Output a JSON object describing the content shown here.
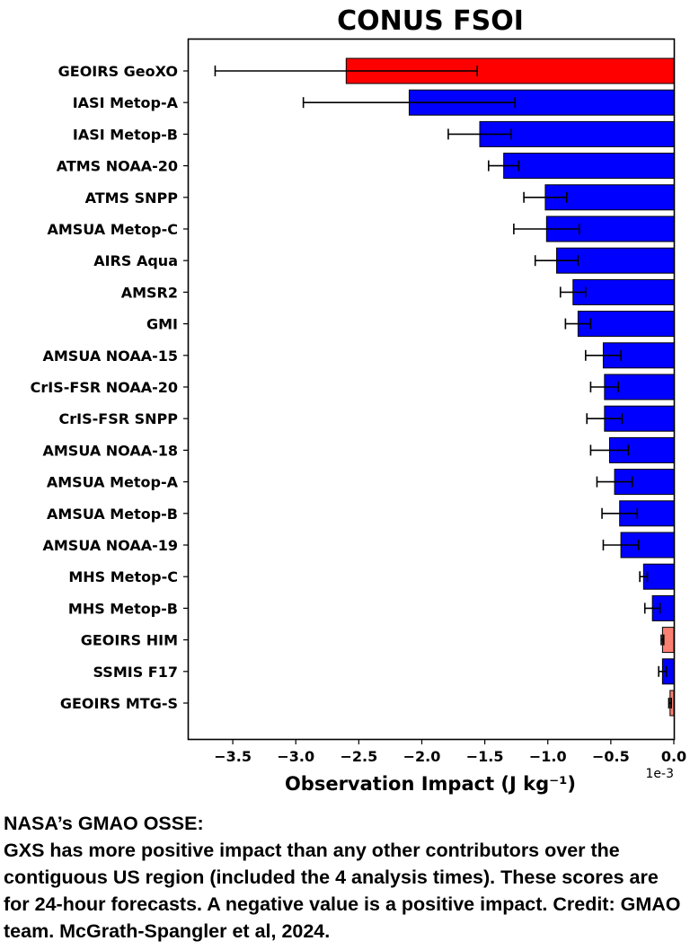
{
  "chart_data": {
    "type": "bar",
    "orientation": "horizontal",
    "title": "CONUS FSOI",
    "xlabel": "Observation Impact (J kg⁻¹)",
    "ylabel": "",
    "x_scale_label": "1e-3",
    "xlim": [
      -3.85,
      0.0
    ],
    "xticks": [
      -3.5,
      -3.0,
      -2.5,
      -2.0,
      -1.5,
      -1.0,
      -0.5,
      0.0
    ],
    "xtick_labels": [
      "−3.5",
      "−3.0",
      "−2.5",
      "−2.0",
      "−1.5",
      "−1.0",
      "−0.5",
      "0.0"
    ],
    "grid": false,
    "categories": [
      "GEOIRS GeoXO",
      "IASI Metop-A",
      "IASI Metop-B",
      "ATMS NOAA-20",
      "ATMS SNPP",
      "AMSUA Metop-C",
      "AIRS Aqua",
      "AMSR2",
      "GMI",
      "AMSUA NOAA-15",
      "CrIS-FSR NOAA-20",
      "CrIS-FSR SNPP",
      "AMSUA NOAA-18",
      "AMSUA Metop-A",
      "AMSUA Metop-B",
      "AMSUA NOAA-19",
      "MHS Metop-C",
      "MHS Metop-B",
      "GEOIRS HIM",
      "SSMIS F17",
      "GEOIRS MTG-S"
    ],
    "values": [
      -2.6,
      -2.1,
      -1.54,
      -1.35,
      -1.02,
      -1.01,
      -0.93,
      -0.8,
      -0.76,
      -0.56,
      -0.55,
      -0.55,
      -0.51,
      -0.47,
      -0.43,
      -0.42,
      -0.24,
      -0.17,
      -0.09,
      -0.09,
      -0.03
    ],
    "errors": [
      1.04,
      0.84,
      0.25,
      0.12,
      0.17,
      0.26,
      0.17,
      0.1,
      0.1,
      0.14,
      0.11,
      0.14,
      0.15,
      0.14,
      0.14,
      0.14,
      0.03,
      0.06,
      0.01,
      0.03,
      0.01
    ],
    "bar_colors": [
      "#ff0000",
      "#0000ff",
      "#0000ff",
      "#0000ff",
      "#0000ff",
      "#0000ff",
      "#0000ff",
      "#0000ff",
      "#0000ff",
      "#0000ff",
      "#0000ff",
      "#0000ff",
      "#0000ff",
      "#0000ff",
      "#0000ff",
      "#0000ff",
      "#0000ff",
      "#0000ff",
      "#fa8072",
      "#0000ff",
      "#fa8072"
    ]
  },
  "caption": {
    "heading": "NASA’s GMAO OSSE:",
    "body": "GXS has more positive impact than any other contributors over the contiguous US region (included the 4 analysis times). These scores are for 24-hour forecasts. A negative value is a positive impact. Credit: GMAO team. McGrath-Spangler et al, 2024."
  }
}
